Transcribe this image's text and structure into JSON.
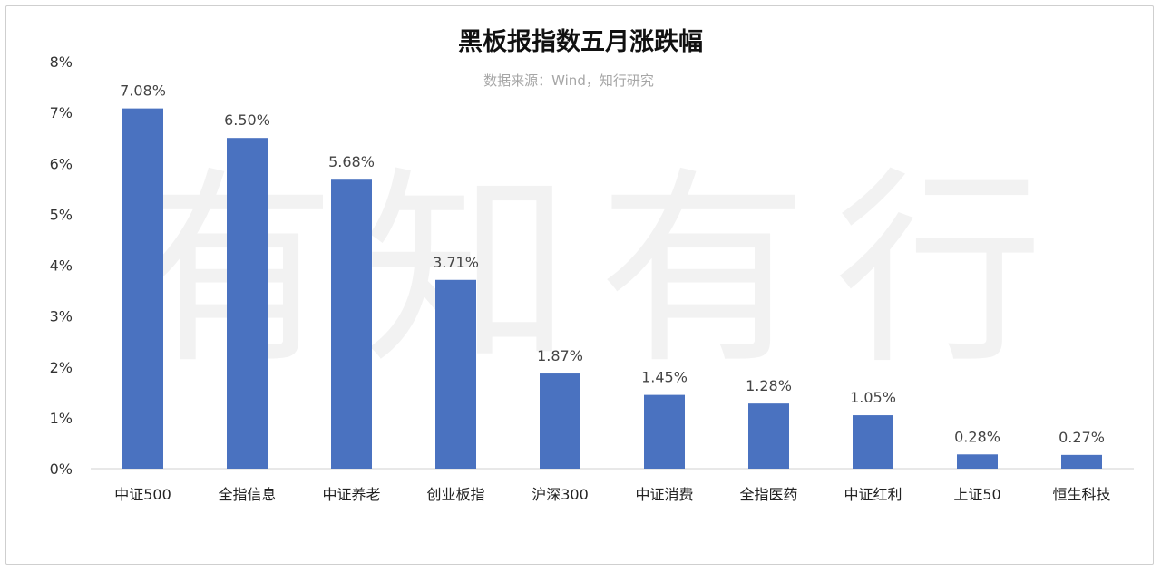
{
  "watermark": "有知有行",
  "chart_data": {
    "type": "bar",
    "title": "黑板报指数五月涨跌幅",
    "subtitle": "数据来源：Wind，知行研究",
    "categories": [
      "中证500",
      "全指信息",
      "中证养老",
      "创业板指",
      "沪深300",
      "中证消费",
      "全指医药",
      "中证红利",
      "上证50",
      "恒生科技"
    ],
    "values": [
      7.08,
      6.5,
      5.68,
      3.71,
      1.87,
      1.45,
      1.28,
      1.05,
      0.28,
      0.27
    ],
    "data_labels": [
      "7.08%",
      "6.50%",
      "5.68%",
      "3.71%",
      "1.87%",
      "1.45%",
      "1.28%",
      "1.05%",
      "0.28%",
      "0.27%"
    ],
    "yticks": [
      "0%",
      "1%",
      "2%",
      "3%",
      "4%",
      "5%",
      "6%",
      "7%",
      "8%"
    ],
    "ylim": [
      0,
      8
    ],
    "xlabel": "",
    "ylabel": "",
    "grid": false,
    "legend": "none",
    "bar_color": "#4a72c0",
    "axis_color": "#d0d0d0"
  }
}
